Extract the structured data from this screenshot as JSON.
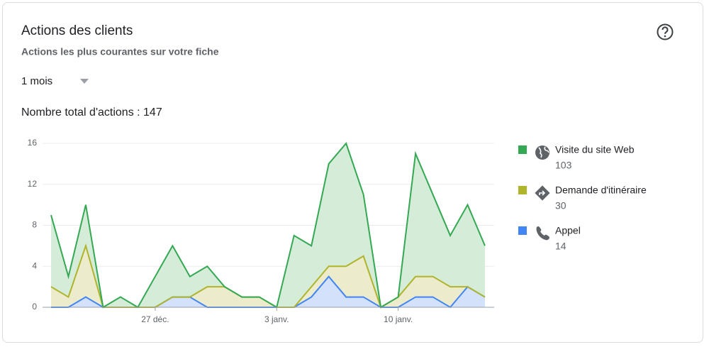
{
  "header": {
    "title": "Actions des clients",
    "subtitle": "Actions les plus courantes sur votre fiche",
    "period": "1 mois",
    "total_actions": "Nombre total d'actions : 147"
  },
  "chart_data": {
    "type": "stacked-area",
    "categories": [
      null,
      null,
      null,
      null,
      null,
      null,
      "27 déc.",
      null,
      null,
      null,
      null,
      null,
      null,
      "3 janv.",
      null,
      null,
      null,
      null,
      null,
      null,
      "10 janv.",
      null,
      null,
      null,
      null,
      null
    ],
    "series": [
      {
        "name": "Visite du site Web",
        "total": 103,
        "color": "#34a853",
        "fill": "#d4ecd8",
        "values": [
          7,
          2,
          4,
          0,
          1,
          0,
          3,
          5,
          2,
          2,
          0,
          0,
          0,
          0,
          7,
          4,
          10,
          12,
          6,
          0,
          0,
          12,
          8,
          5,
          8,
          5
        ]
      },
      {
        "name": "Demande d'itinéraire",
        "total": 30,
        "color": "#afb42b",
        "fill": "#ecebcb",
        "values": [
          2,
          1,
          5,
          0,
          0,
          0,
          0,
          0,
          0,
          2,
          2,
          1,
          1,
          0,
          0,
          1,
          1,
          3,
          4,
          0,
          1,
          2,
          2,
          2,
          0,
          0
        ]
      },
      {
        "name": "Appel",
        "total": 14,
        "color": "#4285f4",
        "fill": "#d3e1fb",
        "values": [
          0,
          0,
          1,
          0,
          0,
          0,
          0,
          1,
          1,
          0,
          0,
          0,
          0,
          0,
          0,
          1,
          3,
          1,
          1,
          0,
          0,
          1,
          1,
          0,
          2,
          1
        ]
      }
    ],
    "ylim": [
      0,
      16
    ],
    "yticks": [
      0,
      4,
      8,
      12,
      16
    ],
    "grid": true
  }
}
